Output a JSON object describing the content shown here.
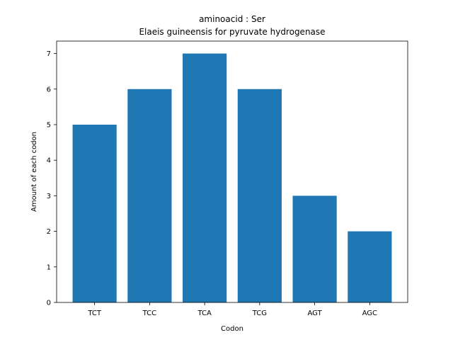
{
  "chart_data": {
    "type": "bar",
    "title": "aminoacid : Ser",
    "subtitle": "Elaeis guineensis for pyruvate hydrogenase",
    "xlabel": "Codon",
    "ylabel": "Amount of each codon",
    "categories": [
      "TCT",
      "TCC",
      "TCA",
      "TCG",
      "AGT",
      "AGC"
    ],
    "values": [
      5,
      6,
      7,
      6,
      3,
      2
    ],
    "ylim": [
      0,
      7.35
    ],
    "yticks": [
      0,
      1,
      2,
      3,
      4,
      5,
      6,
      7
    ],
    "bar_color": "#1f77b4",
    "grid": false,
    "legend": "none"
  }
}
